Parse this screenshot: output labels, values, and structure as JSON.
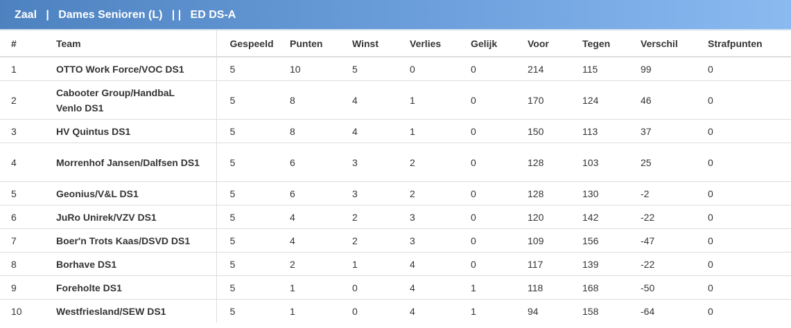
{
  "header": {
    "items": [
      "Zaal",
      "Dames Senioren (L)",
      "ED DS-A"
    ],
    "separators": [
      "|",
      "| |"
    ]
  },
  "columns": [
    "#",
    "Team",
    "Gespeeld",
    "Punten",
    "Winst",
    "Verlies",
    "Gelijk",
    "Voor",
    "Tegen",
    "Verschil",
    "Strafpunten"
  ],
  "rows": [
    {
      "rank": "1",
      "team": "OTTO Work Force/VOC DS1",
      "gespeeld": "5",
      "punten": "10",
      "winst": "5",
      "verlies": "0",
      "gelijk": "0",
      "voor": "214",
      "tegen": "115",
      "verschil": "99",
      "strafpunten": "0",
      "tall": false
    },
    {
      "rank": "2",
      "team": "Cabooter Group/HandbaL Venlo DS1",
      "gespeeld": "5",
      "punten": "8",
      "winst": "4",
      "verlies": "1",
      "gelijk": "0",
      "voor": "170",
      "tegen": "124",
      "verschil": "46",
      "strafpunten": "0",
      "tall": true
    },
    {
      "rank": "3",
      "team": "HV Quintus DS1",
      "gespeeld": "5",
      "punten": "8",
      "winst": "4",
      "verlies": "1",
      "gelijk": "0",
      "voor": "150",
      "tegen": "113",
      "verschil": "37",
      "strafpunten": "0",
      "tall": false
    },
    {
      "rank": "4",
      "team": "Morrenhof Jansen/Dalfsen DS1",
      "gespeeld": "5",
      "punten": "6",
      "winst": "3",
      "verlies": "2",
      "gelijk": "0",
      "voor": "128",
      "tegen": "103",
      "verschil": "25",
      "strafpunten": "0",
      "tall": true
    },
    {
      "rank": "5",
      "team": "Geonius/V&L DS1",
      "gespeeld": "5",
      "punten": "6",
      "winst": "3",
      "verlies": "2",
      "gelijk": "0",
      "voor": "128",
      "tegen": "130",
      "verschil": "-2",
      "strafpunten": "0",
      "tall": false
    },
    {
      "rank": "6",
      "team": "JuRo Unirek/VZV DS1",
      "gespeeld": "5",
      "punten": "4",
      "winst": "2",
      "verlies": "3",
      "gelijk": "0",
      "voor": "120",
      "tegen": "142",
      "verschil": "-22",
      "strafpunten": "0",
      "tall": false
    },
    {
      "rank": "7",
      "team": "Boer'n Trots Kaas/DSVD DS1",
      "gespeeld": "5",
      "punten": "4",
      "winst": "2",
      "verlies": "3",
      "gelijk": "0",
      "voor": "109",
      "tegen": "156",
      "verschil": "-47",
      "strafpunten": "0",
      "tall": false
    },
    {
      "rank": "8",
      "team": "Borhave DS1",
      "gespeeld": "5",
      "punten": "2",
      "winst": "1",
      "verlies": "4",
      "gelijk": "0",
      "voor": "117",
      "tegen": "139",
      "verschil": "-22",
      "strafpunten": "0",
      "tall": false
    },
    {
      "rank": "9",
      "team": "Foreholte DS1",
      "gespeeld": "5",
      "punten": "1",
      "winst": "0",
      "verlies": "4",
      "gelijk": "1",
      "voor": "118",
      "tegen": "168",
      "verschil": "-50",
      "strafpunten": "0",
      "tall": false
    },
    {
      "rank": "10",
      "team": "Westfriesland/SEW DS1",
      "gespeeld": "5",
      "punten": "1",
      "winst": "0",
      "verlies": "4",
      "gelijk": "1",
      "voor": "94",
      "tegen": "158",
      "verschil": "-64",
      "strafpunten": "0",
      "tall": false
    }
  ]
}
